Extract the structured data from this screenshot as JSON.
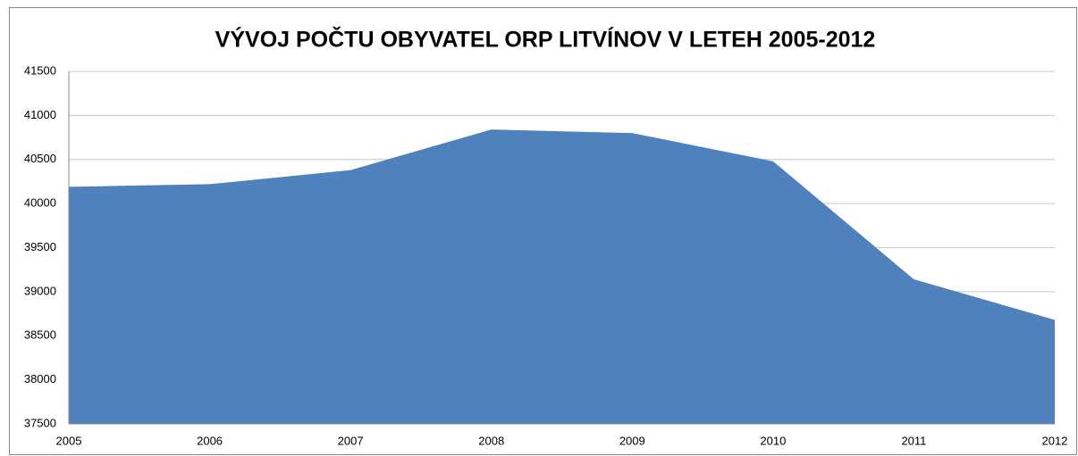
{
  "chart_data": {
    "type": "area",
    "title": "VÝVOJ POČTU OBYVATEL ORP LITVÍNOV V LETEH 2005-2012",
    "categories": [
      "2005",
      "2006",
      "2007",
      "2008",
      "2009",
      "2010",
      "2011",
      "2012"
    ],
    "values": [
      40190,
      40220,
      40380,
      40840,
      40800,
      40480,
      39140,
      38680
    ],
    "color": "#4f81bd",
    "ylim": [
      37500,
      41500
    ],
    "yticks": [
      37500,
      38000,
      38500,
      39000,
      39500,
      40000,
      40500,
      41000,
      41500
    ],
    "grid": true
  }
}
